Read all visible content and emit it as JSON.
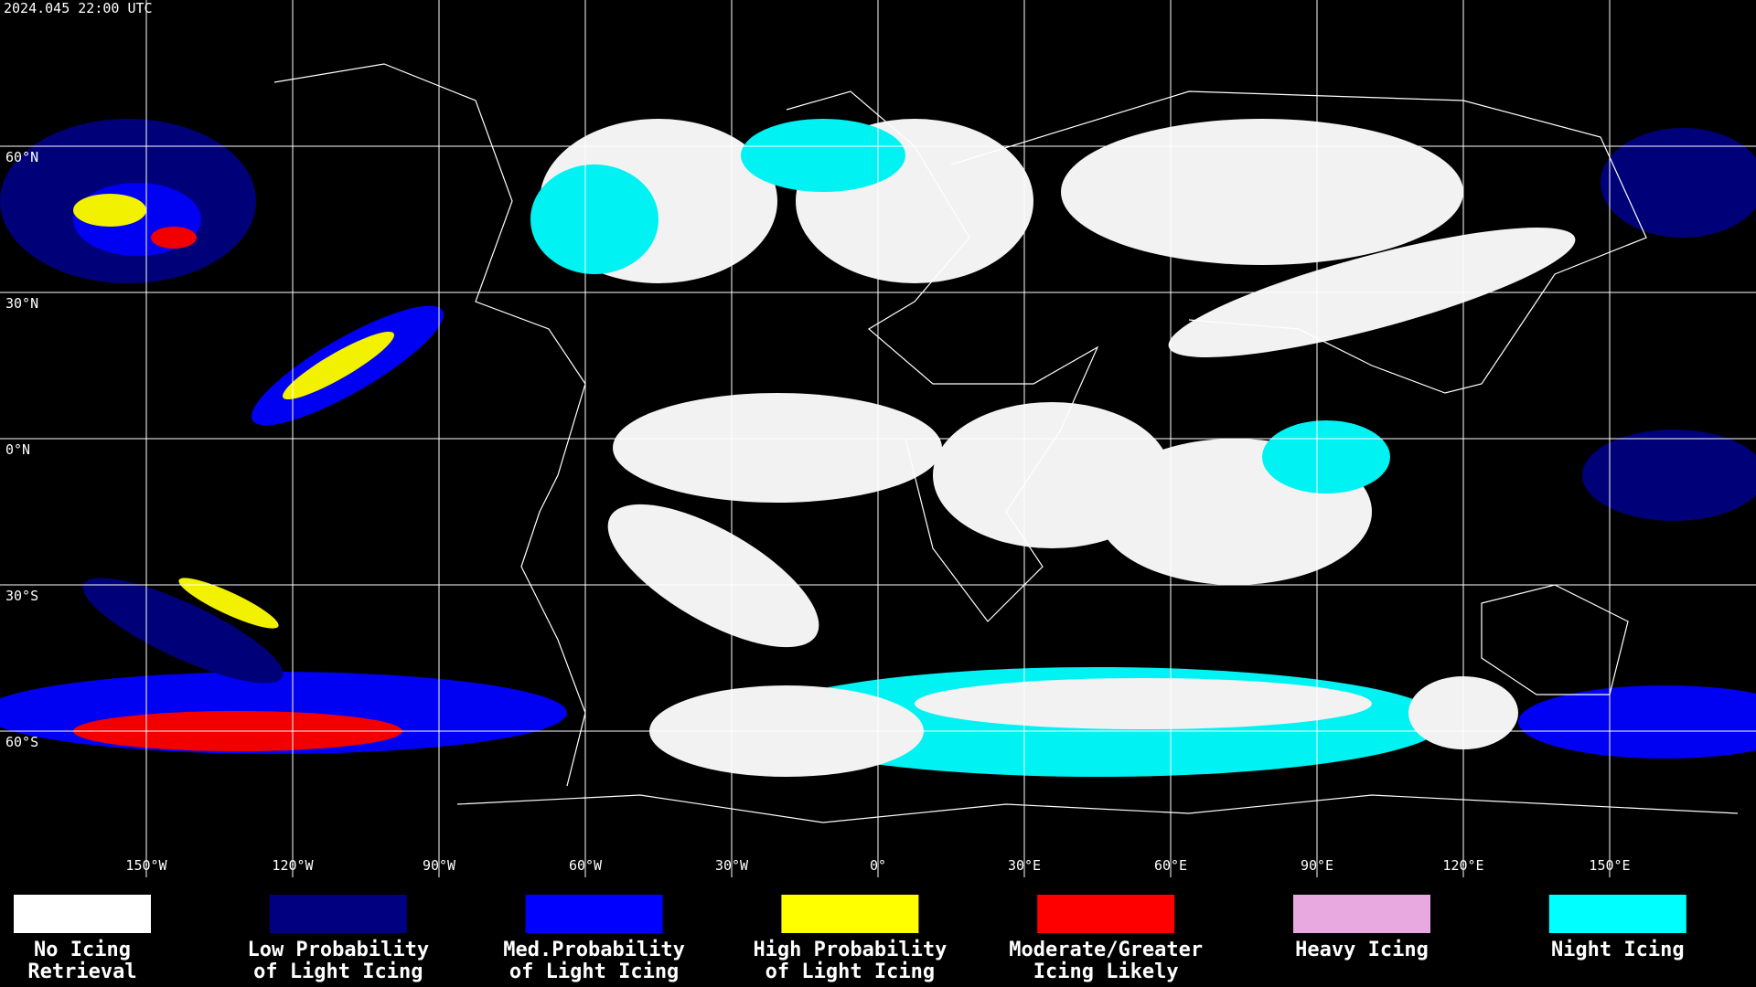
{
  "header": {
    "title": "2024.045 22:00 UTC"
  },
  "grid": {
    "latitudes": [
      {
        "value": 60,
        "label": "60°N"
      },
      {
        "value": 30,
        "label": "30°N"
      },
      {
        "value": 0,
        "label": "0°N"
      },
      {
        "value": -30,
        "label": "30°S"
      },
      {
        "value": -60,
        "label": "60°S"
      }
    ],
    "longitudes": [
      {
        "value": -150,
        "label": "150°W"
      },
      {
        "value": -120,
        "label": "120°W"
      },
      {
        "value": -90,
        "label": "90°W"
      },
      {
        "value": -60,
        "label": "60°W"
      },
      {
        "value": -30,
        "label": "30°W"
      },
      {
        "value": 0,
        "label": "0°"
      },
      {
        "value": 30,
        "label": "30°E"
      },
      {
        "value": 60,
        "label": "60°E"
      },
      {
        "value": 90,
        "label": "90°E"
      },
      {
        "value": 120,
        "label": "120°E"
      },
      {
        "value": 150,
        "label": "150°E"
      }
    ]
  },
  "legend": [
    {
      "lines": [
        "No Icing",
        "Retrieval"
      ],
      "color": "#ffffff"
    },
    {
      "lines": [
        "Low Probability",
        "of Light Icing"
      ],
      "color": "#000080"
    },
    {
      "lines": [
        "Med.Probability",
        "of Light Icing"
      ],
      "color": "#0000ff"
    },
    {
      "lines": [
        "High Probability",
        "of Light Icing"
      ],
      "color": "#ffff00"
    },
    {
      "lines": [
        "Moderate/Greater",
        "Icing Likely"
      ],
      "color": "#ff0000"
    },
    {
      "lines": [
        "Heavy Icing"
      ],
      "color": "#e8a8e0"
    },
    {
      "lines": [
        "Night Icing"
      ],
      "color": "#00ffff"
    }
  ]
}
